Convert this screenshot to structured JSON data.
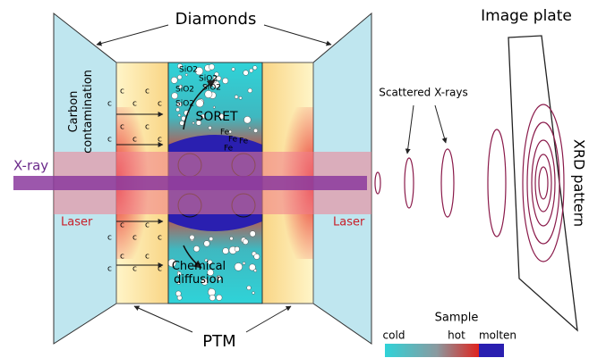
{
  "labels": {
    "diamonds": "Diamonds",
    "image_plate": "Image plate",
    "carbon": "Carbon contamination",
    "xray": "X-ray",
    "laser_left": "Laser",
    "laser_right": "Laser",
    "scattered": "Scattered X-rays",
    "xrd": "XRD pattern",
    "soret": "SORET",
    "chemical": "Chemical diffusion",
    "ptm": "PTM"
  },
  "sio2_labels": [
    "SiO2",
    "SiO2",
    "SiO2",
    "SiO2",
    "SiO2"
  ],
  "fe_labels": [
    "Fe",
    "Fe",
    "Fe",
    "Fe"
  ],
  "contamination_marks": [
    "c",
    "c",
    "c",
    "c",
    "c",
    "c",
    "c",
    "c",
    "c",
    "c",
    "c",
    "c",
    "c",
    "c",
    "c",
    "c",
    "c",
    "c",
    "c",
    "c"
  ],
  "legend": {
    "title": "Sample",
    "cold": "cold",
    "hot": "hot",
    "molten": "molten"
  }
}
